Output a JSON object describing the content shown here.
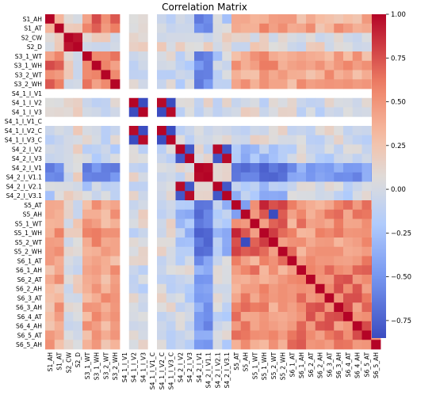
{
  "chart_data": {
    "type": "heatmap",
    "title": "Correlation Matrix",
    "labels": [
      "S1_AH",
      "S1_AT",
      "S2_CW",
      "S2_D",
      "S3_1_WT",
      "S3_1_WH",
      "S3_2_WT",
      "S3_2_WH",
      "S4_1_I_V1",
      "S4_1_I_V2",
      "S4_1_I_V3",
      "S4_1_I_V1_C",
      "S4_1_I_V2_C",
      "S4_1_I_V3_C",
      "S4_2_I_V2",
      "S4_2_I_V3",
      "S4_2_I_V1",
      "S4_2_I_V1.1",
      "S4_2_I_V2.1",
      "S4_2_I_V3.1",
      "S5_AT",
      "S5_AH",
      "S5_1_WT",
      "S5_1_WH",
      "S5_2_WT",
      "S5_2_WH",
      "S6_1_AT",
      "S6_1_AH",
      "S6_2_AT",
      "S6_2_AH",
      "S6_3_AT",
      "S6_3_AH",
      "S6_4_AT",
      "S6_4_AH",
      "S6_5_AT",
      "S6_5_AH"
    ],
    "colorbar": {
      "range": [
        -0.85,
        1.0
      ],
      "ticks": [
        1.0,
        0.75,
        0.5,
        0.25,
        0.0,
        -0.25,
        -0.5,
        -0.75
      ],
      "tick_labels": [
        "1.00",
        "0.75",
        "0.50",
        "0.25",
        "0.00",
        "−0.25",
        "−0.50",
        "−0.75"
      ]
    },
    "missing": [
      "S4_1_I_V1",
      "S4_1_I_V1_C"
    ],
    "groups": {
      "A": [
        "S1_AH",
        "S1_AT",
        "S3_1_WT",
        "S3_1_WH",
        "S3_2_WT",
        "S3_2_WH"
      ],
      "B": [
        "S4_1_I_V2",
        "S4_1_I_V3",
        "S4_1_I_V2_C",
        "S4_1_I_V3_C"
      ],
      "C": [
        "S4_2_I_V2",
        "S4_2_I_V3",
        "S4_2_I_V1",
        "S4_2_I_V1.1",
        "S4_2_I_V2.1",
        "S4_2_I_V3.1"
      ],
      "D": [
        "S5_AT",
        "S5_AH",
        "S5_1_WT",
        "S5_1_WH",
        "S5_2_WT",
        "S5_2_WH"
      ],
      "E": [
        "S6_1_AT",
        "S6_1_AH",
        "S6_2_AT",
        "S6_2_AH",
        "S6_3_AT",
        "S6_3_AH",
        "S6_4_AT",
        "S6_4_AH",
        "S6_5_AT",
        "S6_5_AH"
      ]
    },
    "pair_overrides": [
      [
        "S2_CW",
        "S2_D",
        0.95
      ],
      [
        "S4_1_I_V2",
        "S4_1_I_V3",
        -0.85
      ],
      [
        "S4_1_I_V2",
        "S4_1_I_V2_C",
        0.98
      ],
      [
        "S4_1_I_V2",
        "S4_1_I_V3_C",
        -0.85
      ],
      [
        "S4_1_I_V3",
        "S4_1_I_V2_C",
        -0.85
      ],
      [
        "S4_1_I_V3",
        "S4_1_I_V3_C",
        0.98
      ],
      [
        "S4_1_I_V2_C",
        "S4_1_I_V3_C",
        -0.85
      ],
      [
        "S4_2_I_V2",
        "S4_2_I_V3",
        -0.8
      ],
      [
        "S4_2_I_V2",
        "S4_2_I_V2.1",
        0.98
      ],
      [
        "S4_2_I_V2",
        "S4_2_I_V3.1",
        -0.8
      ],
      [
        "S4_2_I_V3",
        "S4_2_I_V2.1",
        -0.8
      ],
      [
        "S4_2_I_V3",
        "S4_2_I_V3.1",
        0.98
      ],
      [
        "S4_2_I_V2.1",
        "S4_2_I_V3.1",
        -0.8
      ],
      [
        "S4_2_I_V1",
        "S4_2_I_V1.1",
        0.98
      ],
      [
        "S4_2_I_V1",
        "S4_2_I_V2.1",
        0.1
      ],
      [
        "S4_2_I_V1.1",
        "S4_2_I_V2.1",
        0.1
      ],
      [
        "S5_AT",
        "S5_AH",
        -0.45
      ],
      [
        "S5_1_WT",
        "S5_1_WH",
        0.45
      ],
      [
        "S5_2_WT",
        "S5_2_WH",
        0.45
      ],
      [
        "S5_AH",
        "S5_2_WT",
        -0.85
      ],
      [
        "S5_AT",
        "S5_1_WH",
        0.9
      ],
      [
        "S6_1_AT",
        "S6_1_AH",
        0.45
      ],
      [
        "S6_2_AT",
        "S6_2_AH",
        0.5
      ],
      [
        "S6_3_AT",
        "S6_3_AH",
        0.5
      ],
      [
        "S6_4_AT",
        "S6_4_AH",
        0.5
      ],
      [
        "S6_5_AT",
        "S6_5_AH",
        0.5
      ],
      [
        "S3_1_WT",
        "S3_1_WH",
        0.55
      ],
      [
        "S3_2_WT",
        "S3_2_WH",
        0.55
      ],
      [
        "S1_AH",
        "S1_AT",
        0.35
      ]
    ]
  }
}
